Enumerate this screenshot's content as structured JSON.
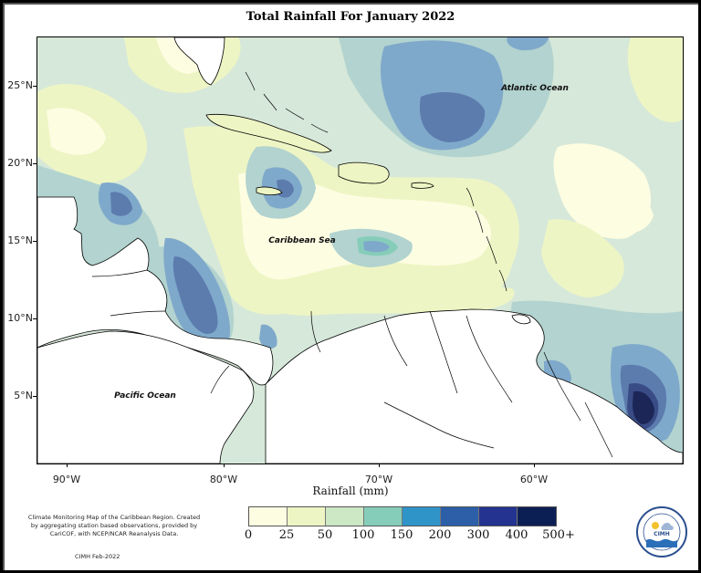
{
  "title": "Total Rainfall For January 2022",
  "map": {
    "labels": {
      "atlantic": "Atlantic Ocean",
      "caribbean": "Caribbean Sea",
      "pacific": "Pacific Ocean"
    },
    "latitude_ticks": [
      "25°N",
      "20°N",
      "15°N",
      "10°N",
      "5°N"
    ],
    "longitude_ticks": [
      "90°W",
      "80°W",
      "70°W",
      "60°W"
    ]
  },
  "legend": {
    "title": "Rainfall (mm)",
    "ticks": [
      "0",
      "25",
      "50",
      "100",
      "150",
      "200",
      "300",
      "400",
      "500+"
    ],
    "colors": [
      "#fdfde2",
      "#eef5c4",
      "#cde8c4",
      "#86cdb9",
      "#2f94c8",
      "#2c5fa8",
      "#23338f",
      "#0c1f55"
    ]
  },
  "map_colors": {
    "lightest": "#fdfde2",
    "light": "#eef5c4",
    "mid_light": "#d6e8d9",
    "mid": "#b2d3cf",
    "blue": "#7fa9cb",
    "deep": "#5c7cae",
    "darker": "#3a4c86",
    "darkest": "#1c2657",
    "land": "#ffffff"
  },
  "credit": {
    "text": "Climate Monitoring Map of the Caribbean Region. Created by aggregating station based observations, provided by CariCOF, with NCEP/NCAR Reanalysis Data.",
    "date": "CIMH Feb-2022"
  },
  "logo": {
    "text": "CIMH"
  }
}
